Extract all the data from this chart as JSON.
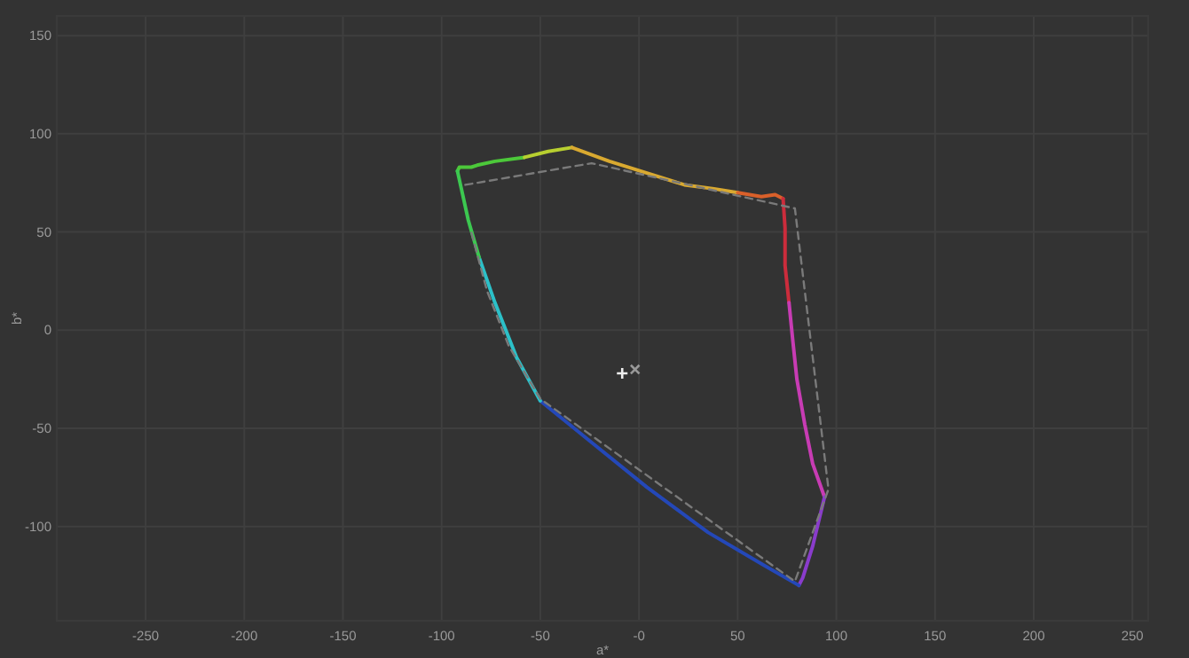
{
  "chart_data": {
    "type": "line",
    "xlabel": "a*",
    "ylabel": "b*",
    "xlim": [
      -295,
      258
    ],
    "ylim": [
      -148,
      160
    ],
    "xticks": [
      -250,
      -200,
      -150,
      -100,
      -50,
      {
        "value": 0,
        "label": "-0"
      },
      50,
      100,
      150,
      200,
      250
    ],
    "yticks": [
      -100,
      -50,
      0,
      50,
      100,
      150
    ],
    "grid": true,
    "series": [
      {
        "color": "#4cc83a",
        "x": [
          -92,
          -91,
          -88,
          -85,
          -82,
          -73,
          -58
        ],
        "values": [
          81,
          83,
          83,
          83,
          84,
          86,
          88
        ]
      },
      {
        "color": "#b8cf30",
        "x": [
          -58,
          -46,
          -34
        ],
        "values": [
          88,
          91,
          93
        ]
      },
      {
        "color": "#d9a930",
        "x": [
          -34,
          -15,
          4,
          23,
          38,
          50
        ],
        "values": [
          93,
          86,
          80,
          74,
          72,
          70
        ]
      },
      {
        "color": "#d9602a",
        "x": [
          50,
          62,
          69,
          73
        ],
        "values": [
          70,
          68,
          69,
          67
        ]
      },
      {
        "color": "#cc2c3c",
        "x": [
          73,
          74,
          74,
          76
        ],
        "values": [
          67,
          52,
          33,
          14
        ]
      },
      {
        "color": "#c83cb4",
        "x": [
          76,
          78,
          80,
          84,
          88,
          94
        ],
        "values": [
          14,
          -6,
          -25,
          -48,
          -68,
          -85
        ]
      },
      {
        "color": "#8a3ccc",
        "x": [
          94,
          88,
          83,
          81
        ],
        "values": [
          -85,
          -110,
          -126,
          -130
        ]
      },
      {
        "color": "#2448b8",
        "x": [
          81,
          62,
          35,
          4,
          -23,
          -50
        ],
        "values": [
          -130,
          -119,
          -103,
          -80,
          -58,
          -36
        ]
      },
      {
        "color": "#2cc0c8",
        "x": [
          -50,
          -62,
          -73,
          -81
        ],
        "values": [
          -36,
          -14,
          14,
          37
        ]
      },
      {
        "color": "#3cc850",
        "x": [
          -81,
          -86.5,
          -90,
          -92
        ],
        "values": [
          37,
          56,
          72,
          81
        ]
      },
      {
        "color": "#7a7a7a",
        "line_style": "dashed",
        "x": [
          -88,
          -24,
          79,
          96,
          79,
          -50,
          -66,
          -77,
          -85
        ],
        "values": [
          74,
          85,
          62,
          -81,
          -128,
          -35,
          -8,
          20,
          50
        ]
      },
      {
        "type": "scatter",
        "marker": "cross",
        "color": "#eeeeee",
        "x": [
          -8.5
        ],
        "values": [
          -22
        ]
      },
      {
        "type": "scatter",
        "marker": "x",
        "color": "#999999",
        "x": [
          -2
        ],
        "values": [
          -20
        ]
      }
    ]
  }
}
